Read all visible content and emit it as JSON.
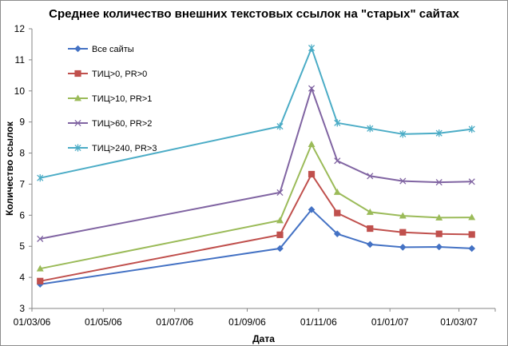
{
  "chart_data": {
    "type": "line",
    "title": "Среднее количество внешних текстовых ссылок на \"старых\" сайтах",
    "xlabel": "Дата",
    "ylabel": "Количество ссылок",
    "ylim": [
      3,
      12
    ],
    "y_ticks": [
      "3",
      "4",
      "5",
      "6",
      "7",
      "8",
      "9",
      "10",
      "11",
      "12"
    ],
    "x_tick_labels": [
      "01/03/06",
      "01/05/06",
      "01/07/06",
      "01/09/06",
      "01/11/06",
      "01/01/07",
      "01/03/07"
    ],
    "x": [
      "2006-03-08",
      "2006-09-29",
      "2006-10-26",
      "2006-11-17",
      "2006-12-15",
      "2007-01-12",
      "2007-02-12",
      "2007-03-12"
    ],
    "grid": false,
    "legend_position": "top-left",
    "series": [
      {
        "name": "Все сайты",
        "color": "#4472c4",
        "marker": "diamond",
        "values": [
          3.78,
          4.93,
          6.18,
          5.4,
          5.06,
          4.97,
          4.98,
          4.93
        ]
      },
      {
        "name": "ТИЦ>0, PR>0",
        "color": "#c0504d",
        "marker": "square",
        "values": [
          3.88,
          5.37,
          7.32,
          6.07,
          5.57,
          5.45,
          5.4,
          5.38
        ]
      },
      {
        "name": "ТИЦ>10, PR>1",
        "color": "#9bbb59",
        "marker": "triangle",
        "values": [
          4.28,
          5.83,
          8.28,
          6.74,
          6.1,
          5.98,
          5.92,
          5.93
        ]
      },
      {
        "name": "ТИЦ>60, PR>2",
        "color": "#8064a2",
        "marker": "x",
        "values": [
          5.24,
          6.73,
          10.08,
          7.75,
          7.26,
          7.1,
          7.06,
          7.08
        ]
      },
      {
        "name": "ТИЦ>240, PR>3",
        "color": "#4bacc6",
        "marker": "star",
        "values": [
          7.2,
          8.86,
          11.38,
          8.97,
          8.79,
          8.61,
          8.64,
          8.77
        ]
      }
    ]
  }
}
